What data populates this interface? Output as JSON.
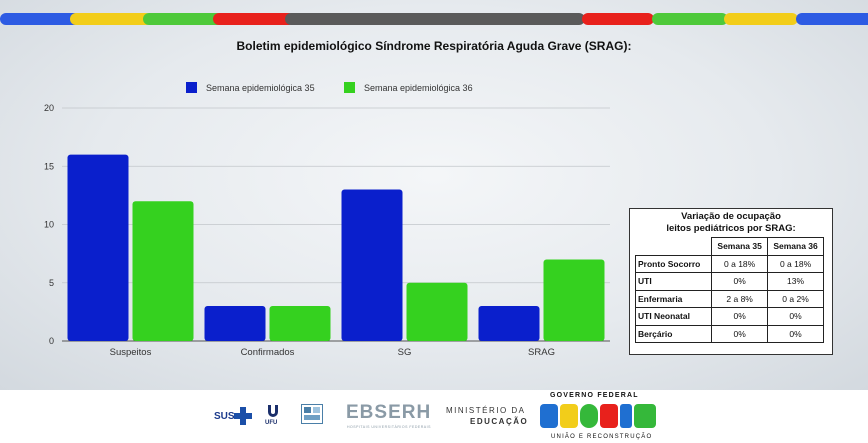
{
  "stripes": [
    {
      "color": "#2d5be3"
    },
    {
      "color": "#f2cd1a"
    },
    {
      "color": "#4ec93a"
    },
    {
      "color": "#e8211c"
    },
    {
      "color": "#5a5a5a"
    },
    {
      "color": "#e8211c"
    },
    {
      "color": "#4ec93a"
    },
    {
      "color": "#f2cd1a"
    },
    {
      "color": "#2d5be3"
    }
  ],
  "chart_data": {
    "type": "bar",
    "title": "Boletim epidemiológico Síndrome Respiratória Aguda Grave (SRAG):",
    "categories": [
      "Suspeitos",
      "Confirmados",
      "SG",
      "SRAG"
    ],
    "series": [
      {
        "name": "Semana epidemiológica 35",
        "color": "#0a1fcc",
        "values": [
          16,
          3,
          13,
          3
        ]
      },
      {
        "name": "Semana epidemiológica 36",
        "color": "#35d11f",
        "values": [
          12,
          3,
          5,
          7
        ]
      }
    ],
    "yticks": [
      0,
      5,
      10,
      15,
      20
    ],
    "ylim": [
      0,
      20
    ],
    "grid": true,
    "legend": "top-center"
  },
  "table": {
    "caption_line1": "Variação de ocupação",
    "caption_line2": "leitos pediátricos por SRAG:",
    "headers": [
      "Semana 35",
      "Semana 36"
    ],
    "rows": [
      {
        "label": "Pronto Socorro",
        "v35": "0 a 18%",
        "v36": "0 a 18%"
      },
      {
        "label": "UTI",
        "v35": "0%",
        "v36": "13%"
      },
      {
        "label": "Enfermaria",
        "v35": "2 a 8%",
        "v36": "0 a 2%"
      },
      {
        "label": "UTI Neonatal",
        "v35": "0%",
        "v36": "0%"
      },
      {
        "label": "Berçário",
        "v35": "0%",
        "v36": "0%"
      }
    ]
  },
  "footer": {
    "sus": "SUS",
    "ufu": "UFU",
    "ebserh": "EBSERH",
    "ebserh_sub": "HOSPITAIS UNIVERSITÁRIOS FEDERAIS",
    "ministerio_line1": "MINISTÉRIO DA",
    "ministerio_line2": "EDUCAÇÃO",
    "gov_top": "GOVERNO FEDERAL",
    "gov_word": "BRASIL",
    "gov_bottom": "UNIÃO E RECONSTRUÇÃO",
    "icon_sus_cross": "blue-cross-icon",
    "icon_ufu": "ufu-emblem-icon",
    "icon_hc": "hospital-logo-icon"
  }
}
